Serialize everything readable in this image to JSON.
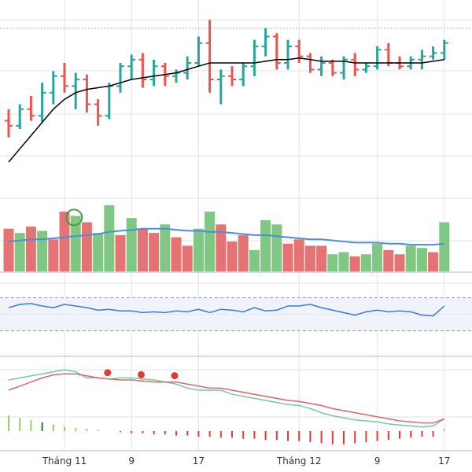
{
  "colors": {
    "up": "#26a69a",
    "down": "#ef5350",
    "volume_up": "#81c784",
    "volume_down": "#e57373",
    "ma": "#000000",
    "volume_ma": "#4a90d9",
    "rsi": "#3a7bd5",
    "rsi_band": "#f0f3fa",
    "macd_line": "#e06666",
    "signal_line": "#76c7a8",
    "hist_pos": "#9ccc65",
    "hist_pos_dark": "#2e7d32",
    "hist_neg": "#e53935",
    "dots": "#e53935",
    "circle_marker": "#43a047",
    "grid": "#e0e3eb",
    "separator": "#b2b5be"
  },
  "chart_data": {
    "type": "bar",
    "xlabel": "",
    "ylabel": "",
    "grid": true,
    "x_tick_labels": [
      "Tháng 11",
      "9",
      "17",
      "Tháng 12",
      "9",
      "17"
    ],
    "x_tick_index": [
      5,
      11,
      17,
      26,
      33,
      39
    ],
    "price_range": [
      0,
      100
    ],
    "ohlc": [
      {
        "o": 45,
        "h": 52,
        "l": 35,
        "c": 42
      },
      {
        "o": 42,
        "h": 55,
        "l": 40,
        "c": 52
      },
      {
        "o": 52,
        "h": 60,
        "l": 45,
        "c": 48
      },
      {
        "o": 48,
        "h": 68,
        "l": 44,
        "c": 62
      },
      {
        "o": 62,
        "h": 75,
        "l": 55,
        "c": 72
      },
      {
        "o": 72,
        "h": 80,
        "l": 62,
        "c": 66
      },
      {
        "o": 66,
        "h": 74,
        "l": 52,
        "c": 70
      },
      {
        "o": 70,
        "h": 73,
        "l": 50,
        "c": 55
      },
      {
        "o": 55,
        "h": 58,
        "l": 42,
        "c": 48
      },
      {
        "o": 48,
        "h": 68,
        "l": 46,
        "c": 66
      },
      {
        "o": 66,
        "h": 80,
        "l": 62,
        "c": 78
      },
      {
        "o": 78,
        "h": 85,
        "l": 70,
        "c": 82
      },
      {
        "o": 82,
        "h": 86,
        "l": 65,
        "c": 70
      },
      {
        "o": 70,
        "h": 82,
        "l": 66,
        "c": 78
      },
      {
        "o": 78,
        "h": 80,
        "l": 66,
        "c": 72
      },
      {
        "o": 72,
        "h": 76,
        "l": 68,
        "c": 74
      },
      {
        "o": 74,
        "h": 84,
        "l": 70,
        "c": 80
      },
      {
        "o": 80,
        "h": 96,
        "l": 78,
        "c": 92
      },
      {
        "o": 92,
        "h": 106,
        "l": 62,
        "c": 70
      },
      {
        "o": 70,
        "h": 76,
        "l": 55,
        "c": 72
      },
      {
        "o": 72,
        "h": 78,
        "l": 66,
        "c": 70
      },
      {
        "o": 70,
        "h": 80,
        "l": 66,
        "c": 78
      },
      {
        "o": 78,
        "h": 94,
        "l": 72,
        "c": 90
      },
      {
        "o": 90,
        "h": 101,
        "l": 84,
        "c": 96
      },
      {
        "o": 96,
        "h": 98,
        "l": 76,
        "c": 80
      },
      {
        "o": 80,
        "h": 94,
        "l": 76,
        "c": 90
      },
      {
        "o": 90,
        "h": 94,
        "l": 80,
        "c": 84
      },
      {
        "o": 84,
        "h": 86,
        "l": 74,
        "c": 76
      },
      {
        "o": 76,
        "h": 84,
        "l": 72,
        "c": 80
      },
      {
        "o": 80,
        "h": 82,
        "l": 72,
        "c": 74
      },
      {
        "o": 74,
        "h": 84,
        "l": 70,
        "c": 82
      },
      {
        "o": 82,
        "h": 86,
        "l": 72,
        "c": 76
      },
      {
        "o": 76,
        "h": 80,
        "l": 74,
        "c": 78
      },
      {
        "o": 78,
        "h": 90,
        "l": 76,
        "c": 88
      },
      {
        "o": 88,
        "h": 92,
        "l": 78,
        "c": 80
      },
      {
        "o": 80,
        "h": 84,
        "l": 76,
        "c": 78
      },
      {
        "o": 78,
        "h": 84,
        "l": 76,
        "c": 82
      },
      {
        "o": 82,
        "h": 88,
        "l": 76,
        "c": 84
      },
      {
        "o": 84,
        "h": 90,
        "l": 82,
        "c": 86
      },
      {
        "o": 86,
        "h": 94,
        "l": 82,
        "c": 92
      }
    ],
    "ma_line": [
      20,
      28,
      36,
      44,
      52,
      58,
      62,
      64,
      65,
      66,
      68,
      70,
      71,
      72,
      73,
      74,
      76,
      78,
      80,
      80,
      80,
      80,
      80,
      81,
      82,
      82,
      83,
      82,
      81,
      81,
      81,
      80,
      80,
      80,
      80,
      80,
      80,
      80,
      81,
      82
    ],
    "volume": [
      {
        "v": 40,
        "up": false
      },
      {
        "v": 36,
        "up": true
      },
      {
        "v": 42,
        "up": false
      },
      {
        "v": 38,
        "up": true
      },
      {
        "v": 30,
        "up": false
      },
      {
        "v": 56,
        "up": false
      },
      {
        "v": 52,
        "up": true
      },
      {
        "v": 46,
        "up": false
      },
      {
        "v": 36,
        "up": true
      },
      {
        "v": 62,
        "up": true
      },
      {
        "v": 34,
        "up": false
      },
      {
        "v": 50,
        "up": true
      },
      {
        "v": 40,
        "up": false
      },
      {
        "v": 36,
        "up": false
      },
      {
        "v": 44,
        "up": true
      },
      {
        "v": 32,
        "up": false
      },
      {
        "v": 24,
        "up": false
      },
      {
        "v": 40,
        "up": true
      },
      {
        "v": 56,
        "up": true
      },
      {
        "v": 44,
        "up": false
      },
      {
        "v": 28,
        "up": false
      },
      {
        "v": 34,
        "up": false
      },
      {
        "v": 20,
        "up": true
      },
      {
        "v": 48,
        "up": true
      },
      {
        "v": 44,
        "up": true
      },
      {
        "v": 26,
        "up": false
      },
      {
        "v": 30,
        "up": false
      },
      {
        "v": 24,
        "up": false
      },
      {
        "v": 24,
        "up": false
      },
      {
        "v": 16,
        "up": true
      },
      {
        "v": 18,
        "up": true
      },
      {
        "v": 14,
        "up": false
      },
      {
        "v": 16,
        "up": true
      },
      {
        "v": 26,
        "up": true
      },
      {
        "v": 20,
        "up": false
      },
      {
        "v": 16,
        "up": false
      },
      {
        "v": 24,
        "up": true
      },
      {
        "v": 22,
        "up": true
      },
      {
        "v": 18,
        "up": false
      },
      {
        "v": 46,
        "up": true
      }
    ],
    "volume_ma": [
      28,
      29,
      30,
      30,
      31,
      32,
      33,
      34,
      35,
      37,
      38,
      39,
      40,
      40,
      40,
      39,
      38,
      38,
      37,
      37,
      36,
      35,
      34,
      34,
      33,
      32,
      31,
      30,
      30,
      29,
      28,
      27,
      27,
      27,
      26,
      26,
      25,
      25,
      25,
      26
    ],
    "rsi": [
      58,
      62,
      63,
      60,
      58,
      62,
      60,
      58,
      55,
      56,
      54,
      54,
      52,
      53,
      52,
      54,
      53,
      56,
      52,
      56,
      55,
      53,
      58,
      54,
      55,
      60,
      60,
      62,
      58,
      55,
      52,
      49,
      53,
      55,
      53,
      54,
      53,
      49,
      48,
      60
    ],
    "rsi_range": [
      0,
      100
    ],
    "macd": [
      40,
      44,
      48,
      52,
      55,
      56,
      56,
      54,
      52,
      51,
      50,
      50,
      49,
      48,
      48,
      48,
      46,
      44,
      42,
      42,
      40,
      38,
      36,
      34,
      32,
      30,
      29,
      27,
      25,
      22,
      20,
      18,
      16,
      14,
      12,
      10,
      9,
      8,
      8,
      12
    ],
    "signal": [
      50,
      52,
      54,
      56,
      58,
      60,
      58,
      52,
      52,
      51,
      52,
      52,
      51,
      50,
      48,
      46,
      42,
      40,
      40,
      40,
      36,
      34,
      32,
      30,
      28,
      26,
      25,
      22,
      18,
      15,
      13,
      11,
      10,
      9,
      7,
      6,
      5,
      4,
      5,
      12
    ],
    "histogram": [
      14,
      12,
      10,
      8,
      6,
      4,
      3,
      2,
      1,
      0,
      -1,
      -2,
      -2,
      -3,
      -3,
      -4,
      -4,
      -5,
      -5,
      -6,
      -6,
      -7,
      -7,
      -8,
      -8,
      -9,
      -9,
      -10,
      -11,
      -12,
      -12,
      -11,
      -10,
      -9,
      -8,
      -7,
      -6,
      -5,
      -5,
      2
    ],
    "sell_dots": [
      9,
      12,
      15
    ],
    "circle_marker_index": 6
  }
}
